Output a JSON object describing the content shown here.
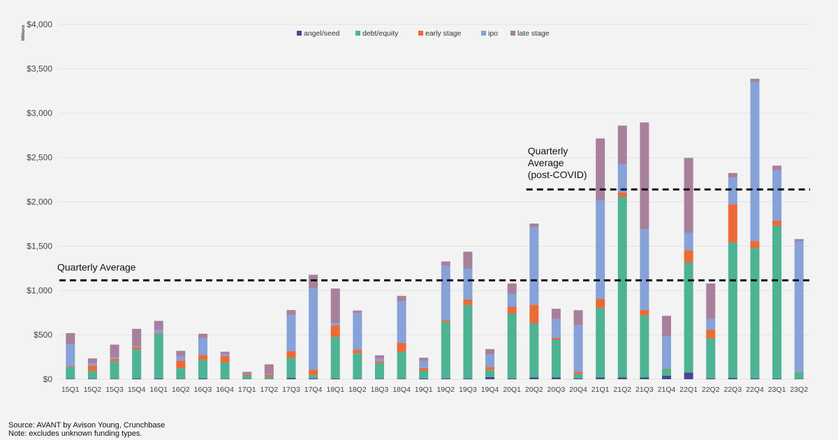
{
  "footer": {
    "source": "Source: AVANT by Avison Young, Crunchbase",
    "note": "Note: excludes unknown funding types."
  },
  "colors": {
    "background": "#f3f3f3",
    "grid": "#e2e2e2",
    "angel_seed": "#4b4494",
    "debt_equity": "#4db394",
    "early_stage": "#ec6a36",
    "ipo": "#86a2d8",
    "late_stage": "#a8809c"
  },
  "chart_data": {
    "type": "bar",
    "stacked": true,
    "title": "",
    "xlabel": "",
    "ylabel": "Millions",
    "ylim": [
      0,
      4000
    ],
    "yticks": [
      0,
      500,
      1000,
      1500,
      2000,
      2500,
      3000,
      3500,
      4000
    ],
    "ytick_labels": [
      "$0",
      "$500",
      "$1,000",
      "$1,500",
      "$2,000",
      "$2,500",
      "$3,000",
      "$3,500",
      "$4,000"
    ],
    "grid": true,
    "legend_position": "top-center",
    "categories": [
      "15Q1",
      "15Q2",
      "15Q3",
      "15Q4",
      "16Q1",
      "16Q2",
      "16Q3",
      "16Q4",
      "17Q1",
      "17Q2",
      "17Q3",
      "17Q4",
      "18Q1",
      "18Q2",
      "18Q3",
      "18Q4",
      "19Q1",
      "19Q2",
      "19Q3",
      "19Q4",
      "20Q1",
      "20Q2",
      "20Q3",
      "20Q4",
      "21Q1",
      "21Q2",
      "21Q3",
      "21Q4",
      "22Q1",
      "22Q2",
      "22Q3",
      "22Q4",
      "23Q1",
      "23Q2"
    ],
    "series": [
      {
        "name": "angel/seed",
        "color": "#4b4494",
        "values": [
          5,
          5,
          5,
          8,
          8,
          5,
          8,
          5,
          3,
          3,
          15,
          8,
          8,
          5,
          5,
          5,
          8,
          8,
          8,
          25,
          10,
          20,
          20,
          8,
          20,
          20,
          20,
          40,
          75,
          10,
          15,
          8,
          8,
          5
        ]
      },
      {
        "name": "debt/equity",
        "color": "#4db394",
        "values": [
          130,
          90,
          195,
          330,
          500,
          120,
          210,
          185,
          40,
          25,
          225,
          40,
          470,
          285,
          175,
          305,
          90,
          640,
          830,
          80,
          730,
          610,
          425,
          50,
          785,
          2035,
          700,
          80,
          1240,
          450,
          1525,
          1470,
          1720,
          75
        ]
      },
      {
        "name": "early stage",
        "color": "#ec6a36",
        "values": [
          10,
          60,
          30,
          25,
          10,
          85,
          55,
          70,
          15,
          25,
          75,
          60,
          130,
          40,
          20,
          100,
          30,
          20,
          60,
          35,
          75,
          210,
          20,
          25,
          100,
          50,
          60,
          5,
          140,
          100,
          435,
          80,
          60,
          5
        ]
      },
      {
        "name": "ipo",
        "color": "#86a2d8",
        "values": [
          250,
          25,
          15,
          5,
          40,
          45,
          190,
          20,
          5,
          10,
          410,
          920,
          25,
          415,
          30,
          470,
          80,
          610,
          350,
          140,
          150,
          875,
          215,
          525,
          1110,
          320,
          910,
          360,
          195,
          120,
          300,
          1790,
          570,
          1470
        ]
      },
      {
        "name": "late stage",
        "color": "#a8809c",
        "values": [
          125,
          55,
          145,
          200,
          100,
          65,
          50,
          30,
          20,
          105,
          55,
          150,
          390,
          30,
          40,
          60,
          35,
          50,
          190,
          60,
          115,
          40,
          115,
          170,
          700,
          435,
          1205,
          230,
          845,
          400,
          50,
          40,
          50,
          25
        ]
      }
    ],
    "annotations": [
      {
        "label": "Quarterly Average",
        "value": 1115,
        "style": "dashed"
      },
      {
        "label_lines": [
          "Quarterly",
          "Average",
          "(post-COVID)"
        ],
        "value": 2140,
        "style": "dashed"
      }
    ]
  }
}
